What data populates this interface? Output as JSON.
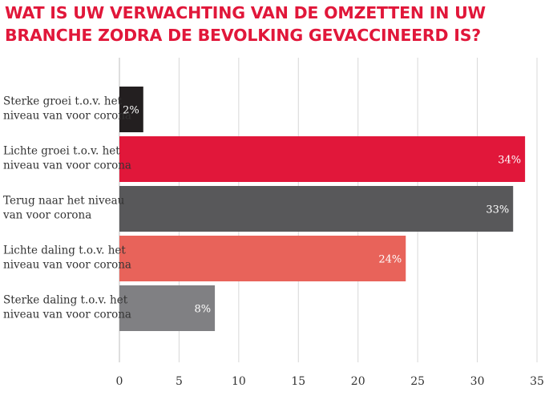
{
  "title_lines": [
    "WAT IS UW VERWACHTING VAN DE OMZETTEN IN UW",
    "BRANCHE ZODRA DE BEVOLKING GEVACCINEERD IS?"
  ],
  "chart_data": {
    "type": "bar",
    "orientation": "horizontal",
    "title": "WAT IS UW VERWACHTING VAN DE OMZETTEN IN UW BRANCHE ZODRA DE BEVOLKING GEVACCINEERD IS?",
    "categories": [
      [
        "Sterke groei t.o.v. het",
        "niveau van voor corona"
      ],
      [
        "Lichte groei t.o.v. het",
        "niveau van voor corona"
      ],
      [
        "Terug naar het niveau",
        "van voor corona"
      ],
      [
        "Lichte daling t.o.v. het",
        "niveau van voor corona"
      ],
      [
        "Sterke daling t.o.v. het",
        "niveau van voor corona"
      ]
    ],
    "values": [
      2,
      34,
      33,
      24,
      8
    ],
    "data_labels": [
      "2%",
      "34%",
      "33%",
      "24%",
      "8%"
    ],
    "bar_colors": [
      "#231f20",
      "#e1173a",
      "#58585a",
      "#e8635a",
      "#808083"
    ],
    "xlim": [
      0,
      35
    ],
    "xticks": [
      0,
      5,
      10,
      15,
      20,
      25,
      30,
      35
    ],
    "grid": true,
    "legend": "none"
  },
  "colors": {
    "title": "#e1173a",
    "grid": "#d8d8d8",
    "text": "#333333"
  }
}
